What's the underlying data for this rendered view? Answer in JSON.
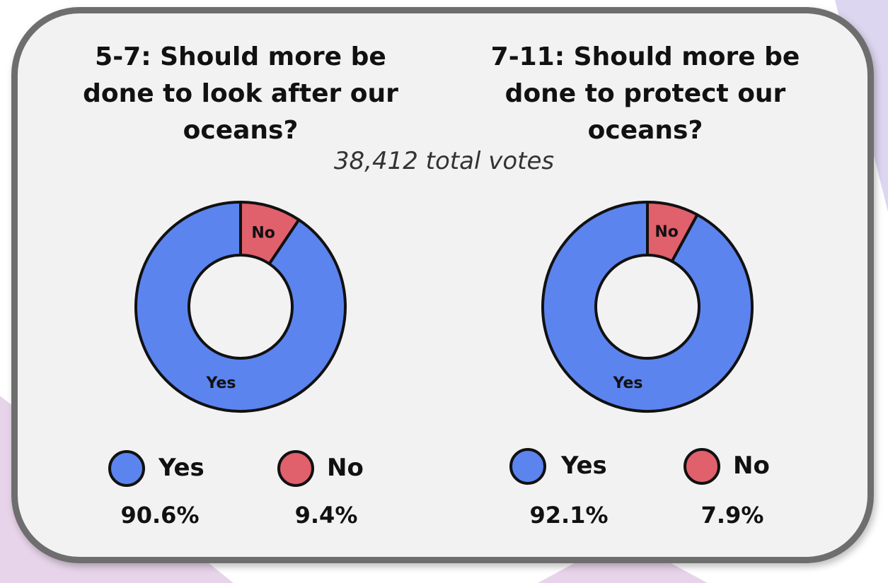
{
  "subtitle": "38,412 total votes",
  "colors": {
    "yes": "#5b84ef",
    "no": "#e0606c",
    "outline": "#111111",
    "card_border": "#6e6e6e",
    "card_fill": "#f2f2f2"
  },
  "chart_data": [
    {
      "type": "pie",
      "title": "5-7: Should more be done to look after our oceans?",
      "donut": true,
      "categories": [
        "Yes",
        "No"
      ],
      "values": [
        90.6,
        9.4
      ],
      "value_labels": [
        "90.6%",
        "9.4%"
      ],
      "slice_labels": [
        "Yes",
        "No"
      ],
      "legend": [
        {
          "label": "Yes",
          "value": "90.6%"
        },
        {
          "label": "No",
          "value": "9.4%"
        }
      ],
      "legend_position": "bottom"
    },
    {
      "type": "pie",
      "title": "7-11: Should more be done to protect our oceans?",
      "donut": true,
      "categories": [
        "Yes",
        "No"
      ],
      "values": [
        92.1,
        7.9
      ],
      "value_labels": [
        "92.1%",
        "7.9%"
      ],
      "slice_labels": [
        "Yes",
        "No"
      ],
      "legend": [
        {
          "label": "Yes",
          "value": "92.1%"
        },
        {
          "label": "No",
          "value": "7.9%"
        }
      ],
      "legend_position": "bottom"
    }
  ]
}
